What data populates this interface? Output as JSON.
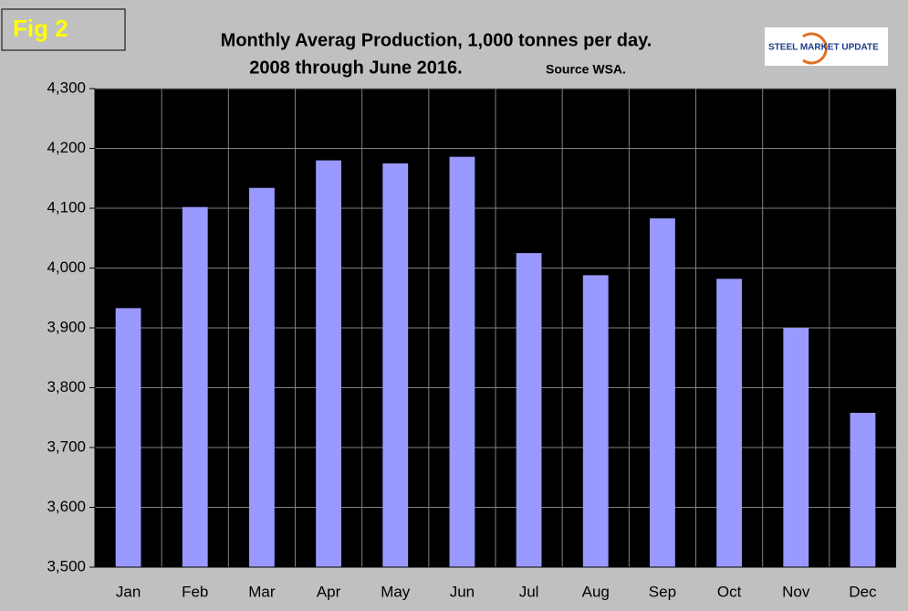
{
  "chart_data": {
    "type": "bar",
    "fig_label": "Fig 2",
    "title": "Monthly Averag Production, 1,000 tonnes per day.",
    "subtitle": "2008 through June 2016.",
    "source": "Source WSA.",
    "logo": "STEEL MARKET UPDATE",
    "categories": [
      "Jan",
      "Feb",
      "Mar",
      "Apr",
      "May",
      "Jun",
      "Jul",
      "Aug",
      "Sep",
      "Oct",
      "Nov",
      "Dec"
    ],
    "values": [
      3933,
      4102,
      4134,
      4180,
      4175,
      4186,
      4025,
      3988,
      4083,
      3982,
      3900,
      3758
    ],
    "color": "#9999ff",
    "ylim": [
      3500,
      4300
    ],
    "yticks": [
      {
        "value": 3500,
        "label": "3,500"
      },
      {
        "value": 3600,
        "label": "3,600"
      },
      {
        "value": 3700,
        "label": "3,700"
      },
      {
        "value": 3800,
        "label": "3,800"
      },
      {
        "value": 3900,
        "label": "3,900"
      },
      {
        "value": 4000,
        "label": "4,000"
      },
      {
        "value": 4100,
        "label": "4,100"
      },
      {
        "value": 4200,
        "label": "4,200"
      },
      {
        "value": 4300,
        "label": "4,300"
      }
    ],
    "grid": true
  }
}
